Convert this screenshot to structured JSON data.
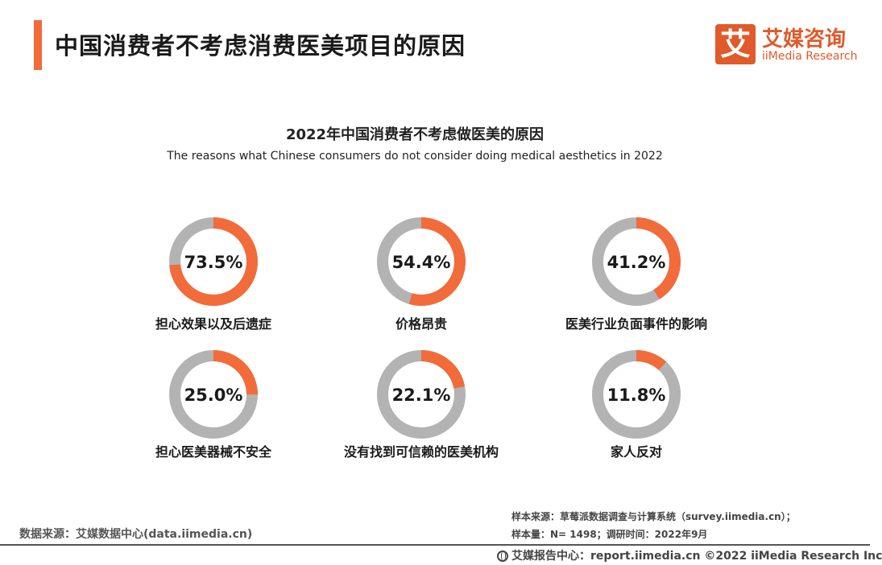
{
  "header": {
    "title": "中国消费者不考虑消费医美项目的原因",
    "logo_mark": "艾",
    "logo_cn": "艾媒咨询",
    "logo_en": "iiMedia Research"
  },
  "chart_data": {
    "type": "pie",
    "title": "2022年中国消费者不考虑做医美的原因",
    "subtitle": "The reasons what Chinese consumers do not consider doing medical aesthetics in 2022",
    "series": [
      {
        "label": "担心效果以及后遗症",
        "value": 73.5,
        "value_label": "73.5%"
      },
      {
        "label": "价格昂贵",
        "value": 54.4,
        "value_label": "54.4%"
      },
      {
        "label": "医美行业负面事件的影响",
        "value": 41.2,
        "value_label": "41.2%"
      },
      {
        "label": "担心医美器械不安全",
        "value": 25.0,
        "value_label": "25.0%"
      },
      {
        "label": "没有找到可信赖的医美机构",
        "value": 22.1,
        "value_label": "22.1%"
      },
      {
        "label": "家人反对",
        "value": 11.8,
        "value_label": "11.8%"
      }
    ],
    "colors": {
      "value": "#f26b3a",
      "remainder": "#b3b3b3"
    }
  },
  "footer": {
    "data_source": "数据来源：艾媒数据中心(data.iimedia.cn)",
    "sample_source": "样本来源：草莓派数据调查与计算系统（survey.iimedia.cn）；",
    "sample_size": "样本量：N= 1498；调研时间：2022年9月",
    "report_center": "艾媒报告中心：report.iimedia.cn  ©2022  iiMedia Research  Inc"
  }
}
